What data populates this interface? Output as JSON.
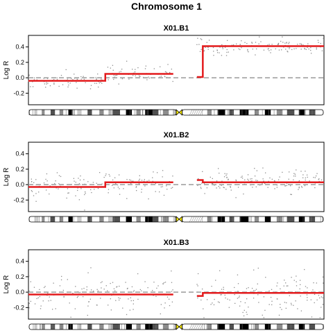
{
  "figure_title": "Chromosome 1",
  "chart_data": [
    {
      "type": "scatter",
      "title": "X01.B1",
      "xlabel": "",
      "ylabel": "Log R",
      "ylim": [
        -0.35,
        0.55
      ],
      "xlim": [
        0,
        1
      ],
      "yticks": [
        "-0.2",
        "0.0",
        "0.2",
        "0.4"
      ],
      "ytick_values": [
        -0.2,
        0.0,
        0.2,
        0.4
      ],
      "reference_line": 0.0,
      "segments": [
        {
          "x0": 0.0,
          "x1": 0.26,
          "y": -0.04
        },
        {
          "x0": 0.26,
          "x1": 0.49,
          "y": 0.05
        },
        {
          "x0": 0.57,
          "x1": 0.59,
          "y": 0.01
        },
        {
          "x0": 0.59,
          "x1": 1.0,
          "y": 0.41
        }
      ],
      "points": {
        "arm1_mean_left": -0.04,
        "arm1_mean_right": 0.05,
        "arm2_mean": 0.41,
        "spread": 0.05
      }
    },
    {
      "type": "scatter",
      "title": "X01.B2",
      "xlabel": "",
      "ylabel": "Log R",
      "ylim": [
        -0.35,
        0.55
      ],
      "xlim": [
        0,
        1
      ],
      "yticks": [
        "-0.2",
        "0.0",
        "0.2",
        "0.4"
      ],
      "ytick_values": [
        -0.2,
        0.0,
        0.2,
        0.4
      ],
      "reference_line": 0.0,
      "segments": [
        {
          "x0": 0.0,
          "x1": 0.26,
          "y": -0.03
        },
        {
          "x0": 0.26,
          "x1": 0.49,
          "y": 0.03
        },
        {
          "x0": 0.57,
          "x1": 0.59,
          "y": 0.06
        },
        {
          "x0": 0.59,
          "x1": 1.0,
          "y": 0.03
        }
      ],
      "points": {
        "arm1_mean_left": -0.03,
        "arm1_mean_right": 0.03,
        "arm2_mean": 0.03,
        "spread": 0.08
      }
    },
    {
      "type": "scatter",
      "title": "X01.B3",
      "xlabel": "",
      "ylabel": "Log R",
      "ylim": [
        -0.35,
        0.55
      ],
      "xlim": [
        0,
        1
      ],
      "yticks": [
        "-0.2",
        "0.0",
        "0.2",
        "0.4"
      ],
      "ytick_values": [
        -0.2,
        0.0,
        0.2,
        0.4
      ],
      "reference_line": 0.0,
      "segments": [
        {
          "x0": 0.0,
          "x1": 0.49,
          "y": -0.03
        },
        {
          "x0": 0.57,
          "x1": 0.59,
          "y": -0.05
        },
        {
          "x0": 0.59,
          "x1": 1.0,
          "y": -0.01
        }
      ],
      "points": {
        "arm1_mean_left": -0.03,
        "arm1_mean_right": -0.03,
        "arm2_mean": -0.01,
        "spread": 0.14
      }
    }
  ],
  "colors": {
    "segment": "#e31a1c",
    "points": "#8c8c8c",
    "reference": "#a8a8a8",
    "centromere": "#ffee00",
    "axis": "#000000"
  },
  "ideogram": {
    "bands": [
      {
        "x0": 0.0,
        "x1": 0.02,
        "stain": "gneg"
      },
      {
        "x0": 0.02,
        "x1": 0.03,
        "stain": "gpos25"
      },
      {
        "x0": 0.03,
        "x1": 0.045,
        "stain": "gneg"
      },
      {
        "x0": 0.045,
        "x1": 0.055,
        "stain": "gpos50"
      },
      {
        "x0": 0.055,
        "x1": 0.075,
        "stain": "gneg"
      },
      {
        "x0": 0.075,
        "x1": 0.09,
        "stain": "gpos75"
      },
      {
        "x0": 0.09,
        "x1": 0.105,
        "stain": "gneg"
      },
      {
        "x0": 0.105,
        "x1": 0.118,
        "stain": "gpos50"
      },
      {
        "x0": 0.118,
        "x1": 0.135,
        "stain": "gneg"
      },
      {
        "x0": 0.135,
        "x1": 0.15,
        "stain": "gpos100"
      },
      {
        "x0": 0.15,
        "x1": 0.165,
        "stain": "gneg"
      },
      {
        "x0": 0.165,
        "x1": 0.18,
        "stain": "gpos25"
      },
      {
        "x0": 0.18,
        "x1": 0.2,
        "stain": "gneg"
      },
      {
        "x0": 0.2,
        "x1": 0.215,
        "stain": "gpos75"
      },
      {
        "x0": 0.215,
        "x1": 0.24,
        "stain": "gneg"
      },
      {
        "x0": 0.24,
        "x1": 0.255,
        "stain": "gpos50"
      },
      {
        "x0": 0.255,
        "x1": 0.27,
        "stain": "gneg"
      },
      {
        "x0": 0.27,
        "x1": 0.285,
        "stain": "gpos25"
      },
      {
        "x0": 0.285,
        "x1": 0.31,
        "stain": "gpos75"
      },
      {
        "x0": 0.31,
        "x1": 0.33,
        "stain": "gneg"
      },
      {
        "x0": 0.33,
        "x1": 0.35,
        "stain": "gpos100"
      },
      {
        "x0": 0.35,
        "x1": 0.365,
        "stain": "gneg"
      },
      {
        "x0": 0.365,
        "x1": 0.38,
        "stain": "gpos50"
      },
      {
        "x0": 0.38,
        "x1": 0.395,
        "stain": "gneg"
      },
      {
        "x0": 0.395,
        "x1": 0.42,
        "stain": "gpos100"
      },
      {
        "x0": 0.42,
        "x1": 0.44,
        "stain": "gpos75"
      },
      {
        "x0": 0.44,
        "x1": 0.455,
        "stain": "gneg"
      },
      {
        "x0": 0.455,
        "x1": 0.475,
        "stain": "gpos50"
      },
      {
        "x0": 0.475,
        "x1": 0.49,
        "stain": "gneg"
      },
      {
        "x0": 0.49,
        "x1": 0.5,
        "stain": "gpos25"
      },
      {
        "x0": 0.52,
        "x1": 0.545,
        "stain": "stalk"
      },
      {
        "x0": 0.545,
        "x1": 0.59,
        "stain": "gvar"
      },
      {
        "x0": 0.59,
        "x1": 0.605,
        "stain": "gneg"
      },
      {
        "x0": 0.605,
        "x1": 0.62,
        "stain": "gpos50"
      },
      {
        "x0": 0.62,
        "x1": 0.64,
        "stain": "gneg"
      },
      {
        "x0": 0.64,
        "x1": 0.665,
        "stain": "gpos100"
      },
      {
        "x0": 0.665,
        "x1": 0.68,
        "stain": "gneg"
      },
      {
        "x0": 0.68,
        "x1": 0.695,
        "stain": "gpos75"
      },
      {
        "x0": 0.695,
        "x1": 0.715,
        "stain": "gneg"
      },
      {
        "x0": 0.715,
        "x1": 0.745,
        "stain": "gpos100"
      },
      {
        "x0": 0.745,
        "x1": 0.765,
        "stain": "gneg"
      },
      {
        "x0": 0.765,
        "x1": 0.78,
        "stain": "gpos50"
      },
      {
        "x0": 0.78,
        "x1": 0.8,
        "stain": "gneg"
      },
      {
        "x0": 0.8,
        "x1": 0.82,
        "stain": "gpos100"
      },
      {
        "x0": 0.82,
        "x1": 0.84,
        "stain": "gneg"
      },
      {
        "x0": 0.84,
        "x1": 0.86,
        "stain": "gpos50"
      },
      {
        "x0": 0.86,
        "x1": 0.875,
        "stain": "gneg"
      },
      {
        "x0": 0.875,
        "x1": 0.9,
        "stain": "gpos75"
      },
      {
        "x0": 0.9,
        "x1": 0.915,
        "stain": "gneg"
      },
      {
        "x0": 0.915,
        "x1": 0.935,
        "stain": "gpos100"
      },
      {
        "x0": 0.935,
        "x1": 0.95,
        "stain": "gneg"
      },
      {
        "x0": 0.95,
        "x1": 0.97,
        "stain": "gpos75"
      },
      {
        "x0": 0.97,
        "x1": 1.0,
        "stain": "gneg"
      }
    ],
    "centromere": {
      "x0": 0.5,
      "x1": 0.52
    }
  }
}
